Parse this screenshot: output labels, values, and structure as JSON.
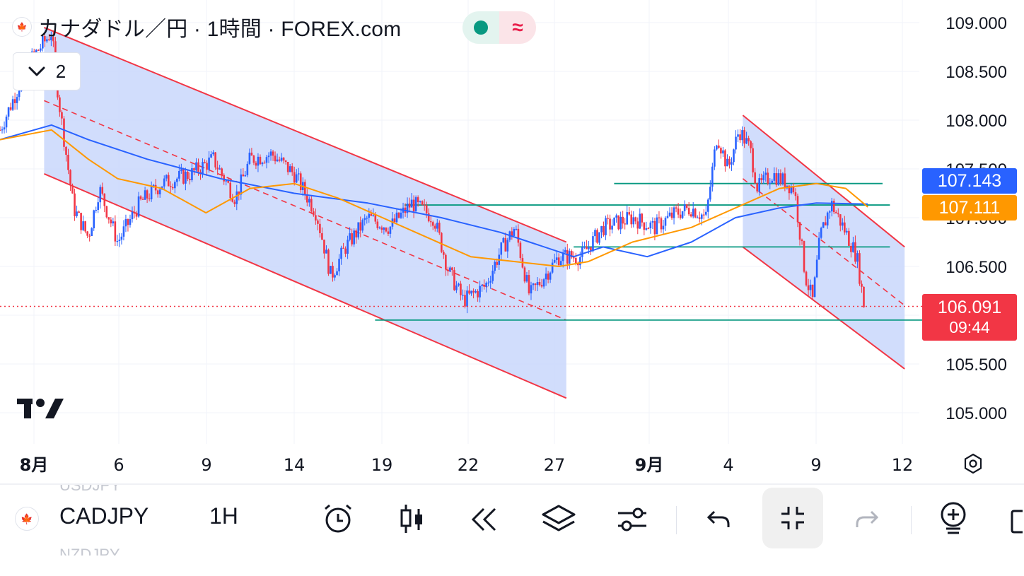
{
  "header": {
    "title": "カナダドル／円 · 1時間 · FOREX.com",
    "flag_label": "🍁",
    "indicator_count": "2",
    "market_status_symbol": "≈"
  },
  "colors": {
    "ma_blue": "#2962ff",
    "ma_orange": "#ff9800",
    "channel_line": "#f23645",
    "channel_fill": "#c9d7fb",
    "hline": "#089981",
    "up_candle": "#2962ff",
    "down_candle": "#f23645",
    "last_price": "#f23645"
  },
  "chart_data": {
    "type": "candlestick",
    "symbol": "CADJPY",
    "interval": "1H",
    "ylim": [
      104.75,
      109.2
    ],
    "y_ticks": [
      "109.000",
      "108.500",
      "108.000",
      "107.500",
      "107.000",
      "106.500",
      "105.500",
      "105.000"
    ],
    "x_tick_labels": [
      "8月",
      "6",
      "9",
      "14",
      "19",
      "22",
      "27",
      "9月",
      "4",
      "9",
      "12"
    ],
    "price_path": [
      [
        0,
        107.9
      ],
      [
        4,
        108.6
      ],
      [
        7,
        108.9
      ],
      [
        8,
        108.2
      ],
      [
        10,
        107.1
      ],
      [
        12,
        106.8
      ],
      [
        13.5,
        107.3
      ],
      [
        16,
        106.75
      ],
      [
        19,
        107.15
      ],
      [
        22,
        107.35
      ],
      [
        26,
        107.45
      ],
      [
        29,
        107.6
      ],
      [
        32,
        107.2
      ],
      [
        34,
        107.6
      ],
      [
        37,
        107.65
      ],
      [
        40,
        107.45
      ],
      [
        43,
        107.05
      ],
      [
        45,
        106.4
      ],
      [
        47,
        106.7
      ],
      [
        50,
        107.0
      ],
      [
        53,
        106.9
      ],
      [
        56,
        107.15
      ],
      [
        59,
        107.0
      ],
      [
        61,
        106.45
      ],
      [
        63,
        106.15
      ],
      [
        66,
        106.3
      ],
      [
        68,
        106.65
      ],
      [
        70,
        106.9
      ],
      [
        72,
        106.2
      ],
      [
        74,
        106.4
      ],
      [
        76,
        106.6
      ],
      [
        79,
        106.6
      ],
      [
        82,
        106.9
      ],
      [
        86,
        107.0
      ],
      [
        89,
        106.9
      ],
      [
        92,
        107.05
      ],
      [
        94,
        107.1
      ],
      [
        96,
        107.0
      ],
      [
        97.5,
        107.85
      ],
      [
        99,
        107.5
      ],
      [
        100.5,
        107.9
      ],
      [
        102,
        107.7
      ],
      [
        103,
        107.3
      ],
      [
        105,
        107.45
      ],
      [
        108,
        107.3
      ],
      [
        109.5,
        106.4
      ],
      [
        110.5,
        106.15
      ],
      [
        111.5,
        106.8
      ],
      [
        113,
        107.15
      ],
      [
        115,
        106.85
      ],
      [
        116.5,
        106.6
      ],
      [
        117.5,
        106.09
      ]
    ],
    "moving_averages": [
      {
        "name": "MA blue",
        "current": "107.143",
        "points": [
          [
            0,
            107.8
          ],
          [
            7,
            107.95
          ],
          [
            12,
            107.8
          ],
          [
            20,
            107.6
          ],
          [
            30,
            107.4
          ],
          [
            40,
            107.25
          ],
          [
            50,
            107.15
          ],
          [
            60,
            107.0
          ],
          [
            68,
            106.85
          ],
          [
            72,
            106.75
          ],
          [
            78,
            106.6
          ],
          [
            82,
            106.7
          ],
          [
            88,
            106.6
          ],
          [
            94,
            106.75
          ],
          [
            100,
            107.0
          ],
          [
            106,
            107.1
          ],
          [
            111,
            107.15
          ],
          [
            118,
            107.14
          ]
        ]
      },
      {
        "name": "MA orange",
        "current": "107.111",
        "points": [
          [
            0,
            107.8
          ],
          [
            7,
            107.9
          ],
          [
            12,
            107.6
          ],
          [
            16,
            107.4
          ],
          [
            22,
            107.3
          ],
          [
            28,
            107.05
          ],
          [
            34,
            107.3
          ],
          [
            40,
            107.35
          ],
          [
            46,
            107.2
          ],
          [
            52,
            107.0
          ],
          [
            58,
            106.8
          ],
          [
            64,
            106.6
          ],
          [
            70,
            106.55
          ],
          [
            76,
            106.5
          ],
          [
            80,
            106.55
          ],
          [
            86,
            106.75
          ],
          [
            94,
            106.9
          ],
          [
            100,
            107.1
          ],
          [
            106,
            107.3
          ],
          [
            111,
            107.35
          ],
          [
            115,
            107.3
          ],
          [
            118,
            107.11
          ]
        ]
      }
    ],
    "channels": [
      {
        "upper": [
          [
            6,
            108.95
          ],
          [
            77,
            106.75
          ]
        ],
        "lower": [
          [
            6,
            107.45
          ],
          [
            77,
            105.15
          ]
        ],
        "mid": [
          [
            6,
            108.2
          ],
          [
            77,
            105.95
          ]
        ]
      },
      {
        "upper": [
          [
            101,
            108.05
          ],
          [
            123,
            106.7
          ]
        ],
        "lower": [
          [
            101,
            106.7
          ],
          [
            123,
            105.45
          ]
        ],
        "mid": [
          [
            101,
            107.4
          ],
          [
            123,
            106.1
          ]
        ]
      }
    ],
    "horizontal_lines": [
      {
        "price": 107.35,
        "from": 83.5,
        "to": 120
      },
      {
        "price": 107.13,
        "from": 55,
        "to": 121
      },
      {
        "price": 106.7,
        "from": 78,
        "to": 121
      },
      {
        "price": 105.95,
        "from": 51,
        "to": 128
      }
    ],
    "last_price": "106.091",
    "countdown": "09:44",
    "last_price_value": 106.091
  },
  "toolbar": {
    "symbol": "CADJPY",
    "interval": "1H",
    "prev_symbol_ghost": "USDJPY",
    "next_symbol_ghost": "NZDJPY"
  }
}
